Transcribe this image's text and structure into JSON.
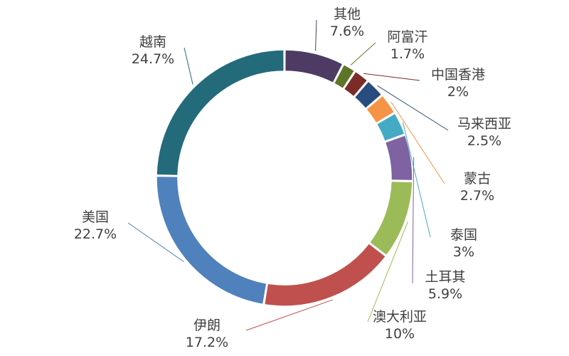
{
  "chart_data": {
    "type": "pie",
    "donut": true,
    "start_angle_deg": 0,
    "direction": "clockwise",
    "legend": "none",
    "slices": [
      {
        "name": "其他",
        "value": 7.6,
        "label": "7.6%",
        "color": "#4e3b63"
      },
      {
        "name": "阿富汗",
        "value": 1.7,
        "label": "1.7%",
        "color": "#5e7428"
      },
      {
        "name": "中国香港",
        "value": 2,
        "label": "2%",
        "color": "#7b2c28"
      },
      {
        "name": "马来西亚",
        "value": 2.5,
        "label": "2.5%",
        "color": "#284c7e"
      },
      {
        "name": "蒙古",
        "value": 2.7,
        "label": "2.7%",
        "color": "#f59446"
      },
      {
        "name": "泰国",
        "value": 3,
        "label": "3%",
        "color": "#45aac4"
      },
      {
        "name": "土耳其",
        "value": 5.9,
        "label": "5.9%",
        "color": "#7f62a2"
      },
      {
        "name": "澳大利亚",
        "value": 10,
        "label": "10%",
        "color": "#9bbb59"
      },
      {
        "name": "伊朗",
        "value": 17.2,
        "label": "17.2%",
        "color": "#c0504d"
      },
      {
        "name": "美国",
        "value": 22.7,
        "label": "22.7%",
        "color": "#4f81bd"
      },
      {
        "name": "越南",
        "value": 24.7,
        "label": "24.7%",
        "color": "#236a7a"
      }
    ]
  }
}
